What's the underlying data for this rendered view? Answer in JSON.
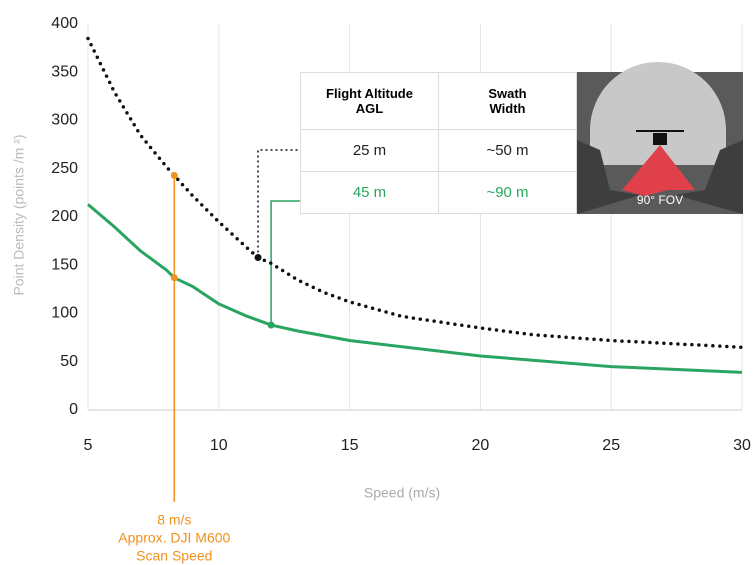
{
  "chart_data": {
    "type": "line",
    "xlabel": "Speed (m/s)",
    "ylabel": "Point Density (points /m ²)",
    "xlim": [
      5,
      30
    ],
    "xticks": [
      5,
      10,
      15,
      20,
      25,
      30
    ],
    "ylim": [
      0,
      400
    ],
    "yticks": [
      0,
      50,
      100,
      150,
      200,
      250,
      300,
      350,
      400
    ],
    "grid": true,
    "series": [
      {
        "name": "25 m",
        "color": "#111111",
        "style": "dotted",
        "x": [
          5,
          6,
          7,
          8,
          8.3,
          9,
          10,
          11,
          11.5,
          12,
          13,
          14,
          15,
          17,
          20,
          22,
          25,
          30
        ],
        "values": [
          385,
          330,
          285,
          252,
          243,
          222,
          195,
          170,
          158,
          152,
          135,
          122,
          112,
          97,
          85,
          78,
          72,
          65
        ]
      },
      {
        "name": "45 m",
        "color": "#2aa561",
        "style": "solid",
        "x": [
          5,
          6,
          7,
          8,
          8.3,
          9,
          10,
          11,
          12,
          13,
          15,
          20,
          25,
          30
        ],
        "values": [
          213,
          190,
          165,
          145,
          137,
          128,
          110,
          98,
          88,
          82,
          72,
          56,
          45,
          39
        ]
      }
    ],
    "markers": [
      {
        "x": 8.3,
        "y": 243,
        "color": "#f0901e"
      },
      {
        "x": 8.3,
        "y": 137,
        "color": "#f0901e"
      },
      {
        "x": 11.5,
        "y": 158,
        "color": "#111111"
      },
      {
        "x": 12,
        "y": 88,
        "color": "#2aa561"
      }
    ],
    "annotation": [
      "8 m/s",
      "Approx. DJI M600",
      "Scan Speed"
    ],
    "annotation_color": "#f0901e",
    "table": {
      "header": [
        "Flight Altitude\nAGL",
        "Swath\nWidth"
      ],
      "rows": [
        [
          "25 m",
          "~50 m"
        ],
        [
          "45 m",
          "~90 m"
        ]
      ]
    },
    "image_caption": "90° FOV"
  }
}
